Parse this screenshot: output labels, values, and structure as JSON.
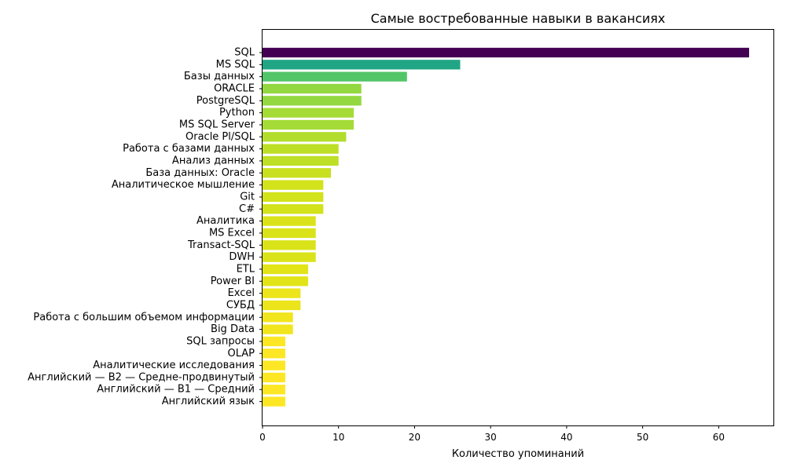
{
  "chart_data": {
    "type": "bar",
    "orientation": "horizontal",
    "title": "Самые востребованные навыки в вакансиях",
    "xlabel": "Количество упоминаний",
    "ylabel": "",
    "xlim": [
      0,
      67.2
    ],
    "xticks": [
      0,
      10,
      20,
      30,
      40,
      50,
      60
    ],
    "grid": false,
    "legend": "none",
    "colormap": "viridis",
    "categories": [
      "SQL",
      "MS SQL",
      "Базы данных",
      "ORACLE",
      "PostgreSQL",
      "Python",
      "MS SQL Server",
      "Oracle Pl/SQL",
      "Работа с базами данных",
      "Анализ данных",
      "База данных: Oracle",
      "Аналитическое мышление",
      "Git",
      "C#",
      "Аналитика",
      "MS Excel",
      "Transact-SQL",
      "DWH",
      "ETL",
      "Power BI",
      "Excel",
      "СУБД",
      "Работа с большим объемом информации",
      "Big Data",
      "SQL запросы",
      "OLAP",
      "Аналитические исследования",
      "Английский — B2 — Средне-продвинутый",
      "Английский — B1 — Средний",
      "Английский язык"
    ],
    "values": [
      64,
      26,
      19,
      13,
      13,
      12,
      12,
      11,
      10,
      10,
      9,
      8,
      8,
      8,
      7,
      7,
      7,
      7,
      6,
      6,
      5,
      5,
      4,
      4,
      3,
      3,
      3,
      3,
      3,
      3
    ],
    "colors": [
      "#440154",
      "#21a685",
      "#52c569",
      "#93d741",
      "#93d741",
      "#a5db36",
      "#a5db36",
      "#b2dd2d",
      "#bddf26",
      "#bddf26",
      "#c8e020",
      "#d2e21b",
      "#d2e21b",
      "#d2e21b",
      "#dae319",
      "#dae319",
      "#dae319",
      "#dae319",
      "#e2e418",
      "#e2e418",
      "#ece51b",
      "#ece51b",
      "#f1e51d",
      "#f1e51d",
      "#fde725",
      "#fde725",
      "#fde725",
      "#fde725",
      "#fde725",
      "#fde725"
    ]
  }
}
